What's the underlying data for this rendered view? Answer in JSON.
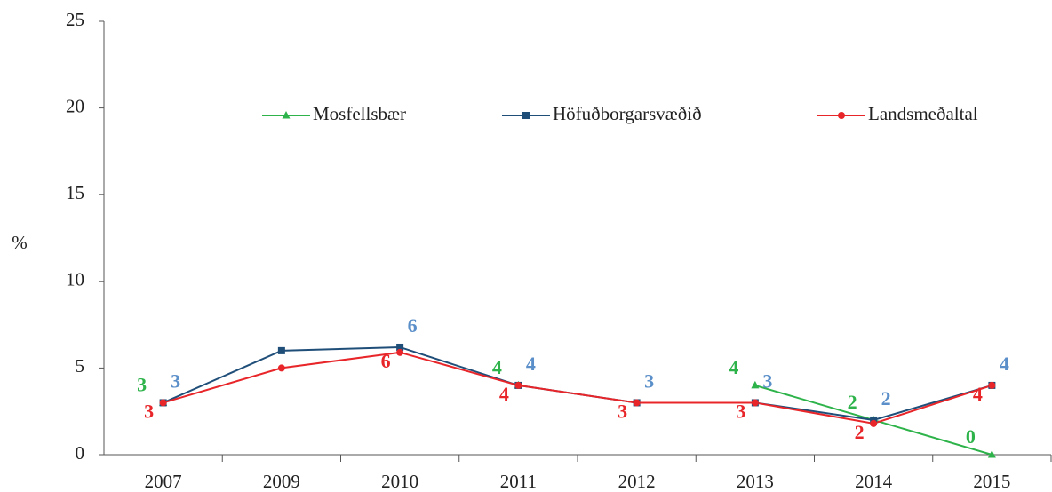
{
  "chart_data": {
    "type": "line",
    "y_label": "%",
    "categories": [
      "2007",
      "2009",
      "2010",
      "2011",
      "2012",
      "2013",
      "2014",
      "2015"
    ],
    "series": [
      {
        "name": "Mosfellsbær",
        "color": "#2db34a",
        "label_color": "#2db34a",
        "marker": "triangle",
        "values": [
          3,
          null,
          null,
          4,
          null,
          4,
          2,
          0
        ]
      },
      {
        "name": "Höfuðborgarsvæðið",
        "color": "#1f4e79",
        "label_color": "#5b8fc9",
        "marker": "square",
        "values": [
          3,
          6,
          6.2,
          4,
          3,
          3,
          2,
          4
        ],
        "value_labels": [
          "3",
          null,
          "6",
          "4",
          "3",
          "3",
          "2",
          "4"
        ]
      },
      {
        "name": "Landsmeðaltal",
        "color": "#e8262a",
        "label_color": "#e8262a",
        "marker": "circle",
        "values": [
          3,
          5,
          5.9,
          4,
          3,
          3,
          1.8,
          4
        ],
        "value_labels": [
          "3",
          null,
          "6",
          "4",
          "3",
          "3",
          "2",
          "4"
        ]
      }
    ],
    "ylim": [
      0,
      25
    ],
    "yticks": [
      0,
      5,
      10,
      15,
      20,
      25
    ],
    "legend": "top"
  }
}
